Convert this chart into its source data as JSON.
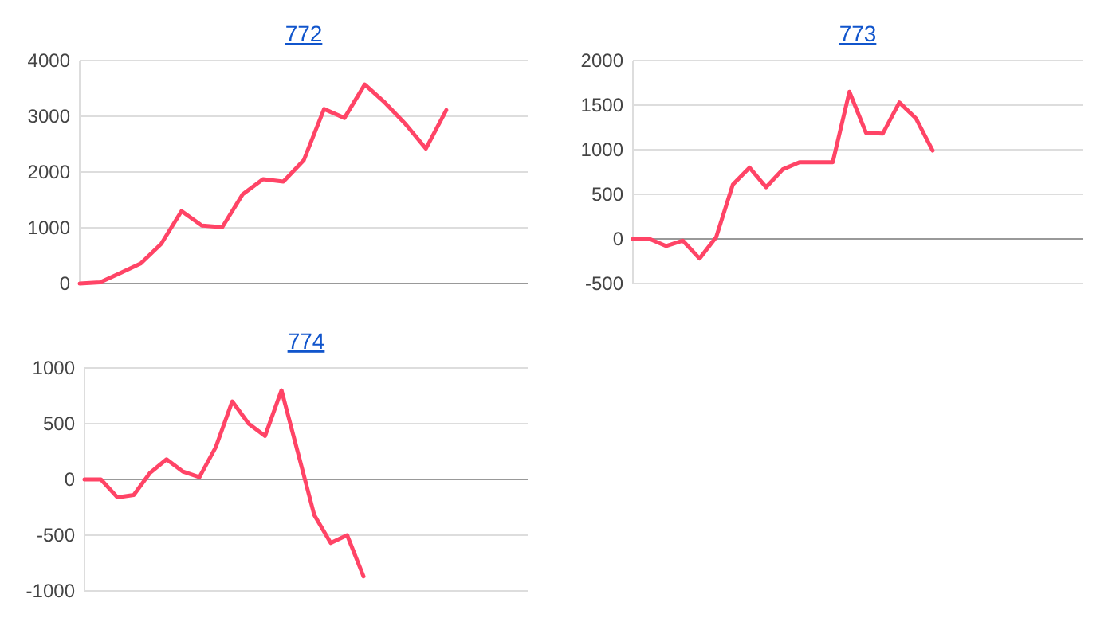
{
  "chart_data": [
    {
      "type": "line",
      "title": "772",
      "categories": [
        null,
        null,
        null,
        null,
        null,
        null,
        null,
        null,
        null,
        null,
        null,
        null,
        null,
        null,
        null,
        null,
        null,
        null,
        null,
        null,
        null,
        null,
        null
      ],
      "series": [
        {
          "color": "#ff4466",
          "values": [
            0,
            20,
            190,
            360,
            710,
            1300,
            1040,
            1010,
            1600,
            1870,
            1830,
            2210,
            3130,
            2970,
            3570,
            3240,
            2860,
            2420,
            3110,
            null,
            null,
            null,
            null
          ]
        }
      ],
      "ylim": [
        0,
        4000
      ],
      "yticks": [
        0,
        1000,
        2000,
        3000,
        4000
      ],
      "grid": "y"
    },
    {
      "type": "line",
      "title": "773",
      "categories": [
        null,
        null,
        null,
        null,
        null,
        null,
        null,
        null,
        null,
        null,
        null,
        null,
        null,
        null,
        null,
        null,
        null,
        null,
        null,
        null,
        null,
        null,
        null,
        null,
        null,
        null,
        null,
        null
      ],
      "series": [
        {
          "color": "#ff4466",
          "values": [
            0,
            0,
            -80,
            -20,
            -220,
            20,
            610,
            800,
            580,
            780,
            860,
            860,
            860,
            1650,
            1190,
            1180,
            1530,
            1350,
            990,
            null,
            null,
            null,
            null,
            null,
            null,
            null,
            null,
            null
          ]
        }
      ],
      "ylim": [
        -500,
        2000
      ],
      "yticks": [
        -500,
        0,
        500,
        1000,
        1500,
        2000
      ],
      "grid": "y"
    },
    {
      "type": "line",
      "title": "774",
      "categories": [
        null,
        null,
        null,
        null,
        null,
        null,
        null,
        null,
        null,
        null,
        null,
        null,
        null,
        null,
        null,
        null,
        null,
        null,
        null,
        null,
        null,
        null,
        null,
        null,
        null,
        null,
        null,
        null
      ],
      "series": [
        {
          "color": "#ff4466",
          "values": [
            0,
            0,
            -160,
            -140,
            60,
            180,
            70,
            20,
            290,
            700,
            500,
            390,
            800,
            240,
            -320,
            -570,
            -500,
            -870,
            null,
            null,
            null,
            null,
            null,
            null,
            null,
            null,
            null,
            null
          ]
        }
      ],
      "ylim": [
        -1000,
        1000
      ],
      "yticks": [
        -1000,
        -500,
        0,
        500,
        1000
      ],
      "grid": "y"
    }
  ]
}
